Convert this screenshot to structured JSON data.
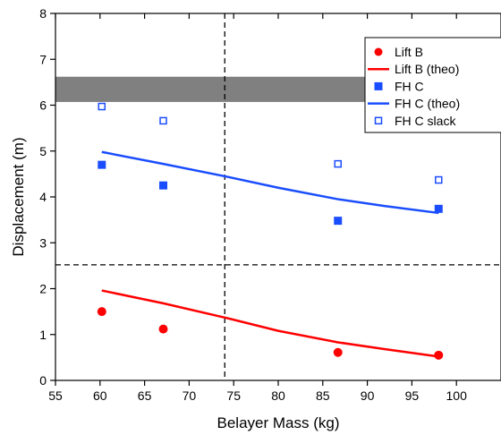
{
  "chart_data": {
    "type": "scatter",
    "xlabel": "Belayer Mass (kg)",
    "ylabel": "Displacement (m)",
    "xlim": [
      55,
      105
    ],
    "ylim": [
      0,
      8
    ],
    "xticks": [
      55,
      60,
      65,
      70,
      75,
      80,
      85,
      90,
      95,
      100
    ],
    "yticks": [
      0,
      1,
      2,
      3,
      4,
      5,
      6,
      7,
      8
    ],
    "legend_position": "top-right",
    "band": {
      "y_range": [
        6.07,
        6.62
      ],
      "color": "#808080"
    },
    "reference_lines": [
      {
        "orientation": "vertical",
        "value": 74,
        "style": "dashed",
        "color": "#000000"
      },
      {
        "orientation": "horizontal",
        "value": 2.52,
        "style": "dashed",
        "color": "#000000"
      }
    ],
    "series": [
      {
        "name": "Lift B",
        "kind": "points",
        "marker": "circle",
        "color": "#ff0000",
        "x": [
          60.2,
          67.1,
          86.7,
          98.0
        ],
        "y": [
          1.5,
          1.12,
          0.61,
          0.55
        ]
      },
      {
        "name": "Lift B (theo)",
        "kind": "line",
        "color": "#ff0000",
        "x": [
          60.2,
          67.1,
          74.0,
          80.0,
          86.7,
          92.0,
          98.0
        ],
        "y": [
          1.96,
          1.68,
          1.37,
          1.08,
          0.83,
          0.68,
          0.52
        ]
      },
      {
        "name": "FH C",
        "kind": "points",
        "marker": "square",
        "color": "#1a4dff",
        "x": [
          60.2,
          67.1,
          86.7,
          98.0
        ],
        "y": [
          4.7,
          4.25,
          3.48,
          3.74
        ]
      },
      {
        "name": "FH C (theo)",
        "kind": "line",
        "color": "#1a4dff",
        "x": [
          60.2,
          67.1,
          74.0,
          80.0,
          86.7,
          92.0,
          98.0
        ],
        "y": [
          4.98,
          4.72,
          4.45,
          4.2,
          3.95,
          3.8,
          3.65
        ]
      },
      {
        "name": "FH C slack",
        "kind": "points",
        "marker": "open-square",
        "color": "#1a4dff",
        "x": [
          60.2,
          67.1,
          86.7,
          98.0
        ],
        "y": [
          5.97,
          5.66,
          4.72,
          4.37
        ]
      }
    ]
  }
}
